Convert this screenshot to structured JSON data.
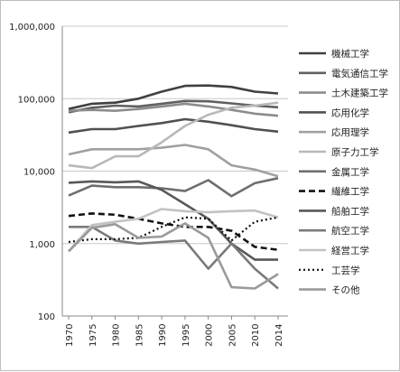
{
  "chart_data": {
    "type": "line",
    "title": "",
    "xlabel": "",
    "ylabel": "",
    "y_scale": "log",
    "ylim": [
      100,
      1000000
    ],
    "grid": "horizontal",
    "legend_position": "right",
    "x": [
      "1970",
      "1975",
      "1980",
      "1985",
      "1990",
      "1995",
      "2000",
      "2005",
      "2010",
      "2014"
    ],
    "y_ticks": [
      100,
      1000,
      10000,
      100000,
      1000000
    ],
    "y_tick_labels": [
      "100",
      "1,000",
      "10,000",
      "100,000",
      "1,000,000"
    ],
    "series": [
      {
        "name": "機械工学",
        "color": "#404040",
        "dash": "",
        "width": 2.6,
        "values": [
          72000,
          85000,
          88000,
          100000,
          125000,
          150000,
          152000,
          145000,
          125000,
          118000
        ]
      },
      {
        "name": "電気通信工学",
        "color": "#606060",
        "dash": "",
        "width": 2.6,
        "values": [
          65000,
          75000,
          80000,
          78000,
          85000,
          93000,
          92000,
          86000,
          80000,
          76000
        ]
      },
      {
        "name": "土木建築工学",
        "color": "#8c8c8c",
        "dash": "",
        "width": 2.6,
        "values": [
          68000,
          70000,
          68000,
          72000,
          78000,
          85000,
          78000,
          70000,
          62000,
          58000
        ]
      },
      {
        "name": "応用化学",
        "color": "#505050",
        "dash": "",
        "width": 2.6,
        "values": [
          34000,
          38000,
          38000,
          42000,
          46000,
          52000,
          48000,
          43000,
          38000,
          35000
        ]
      },
      {
        "name": "応用理学",
        "color": "#a0a0a0",
        "dash": "",
        "width": 2.6,
        "values": [
          17000,
          20000,
          20000,
          20000,
          21000,
          23000,
          20000,
          12000,
          10500,
          8500
        ]
      },
      {
        "name": "原子力工学",
        "color": "#b8b8b8",
        "dash": "",
        "width": 2.6,
        "values": [
          12000,
          11000,
          16000,
          16000,
          25000,
          42000,
          60000,
          75000,
          80000,
          88000
        ]
      },
      {
        "name": "金属工学",
        "color": "#6e6e6e",
        "dash": "",
        "width": 2.6,
        "values": [
          4600,
          6300,
          6000,
          6000,
          5800,
          5300,
          7500,
          4500,
          6800,
          8000
        ]
      },
      {
        "name": "繊維工学",
        "color": "#111111",
        "dash": "7,4",
        "width": 2.6,
        "values": [
          2400,
          2600,
          2500,
          2200,
          1900,
          1700,
          1700,
          1500,
          900,
          820
        ]
      },
      {
        "name": "船舶工学",
        "color": "#585858",
        "dash": "",
        "width": 2.6,
        "values": [
          6900,
          7200,
          7000,
          7200,
          5500,
          3500,
          2200,
          1000,
          600,
          600
        ]
      },
      {
        "name": "航空工学",
        "color": "#7a7a7a",
        "dash": "",
        "width": 2.6,
        "values": [
          1700,
          1700,
          1100,
          1000,
          1050,
          1100,
          450,
          1000,
          450,
          240
        ]
      },
      {
        "name": "経営工学",
        "color": "#c2c2c2",
        "dash": "",
        "width": 2.6,
        "values": [
          780,
          1800,
          2000,
          2200,
          3000,
          2800,
          2700,
          2800,
          2850,
          2300
        ]
      },
      {
        "name": "工芸学",
        "color": "#111111",
        "dash": "2,3",
        "width": 2.2,
        "values": [
          1050,
          1150,
          1150,
          1200,
          1700,
          2300,
          2200,
          1100,
          2000,
          2300
        ]
      },
      {
        "name": "その他",
        "color": "#9a9a9a",
        "dash": "",
        "width": 2.6,
        "values": [
          780,
          1650,
          1850,
          1200,
          1250,
          1900,
          1200,
          250,
          240,
          380
        ]
      }
    ]
  }
}
